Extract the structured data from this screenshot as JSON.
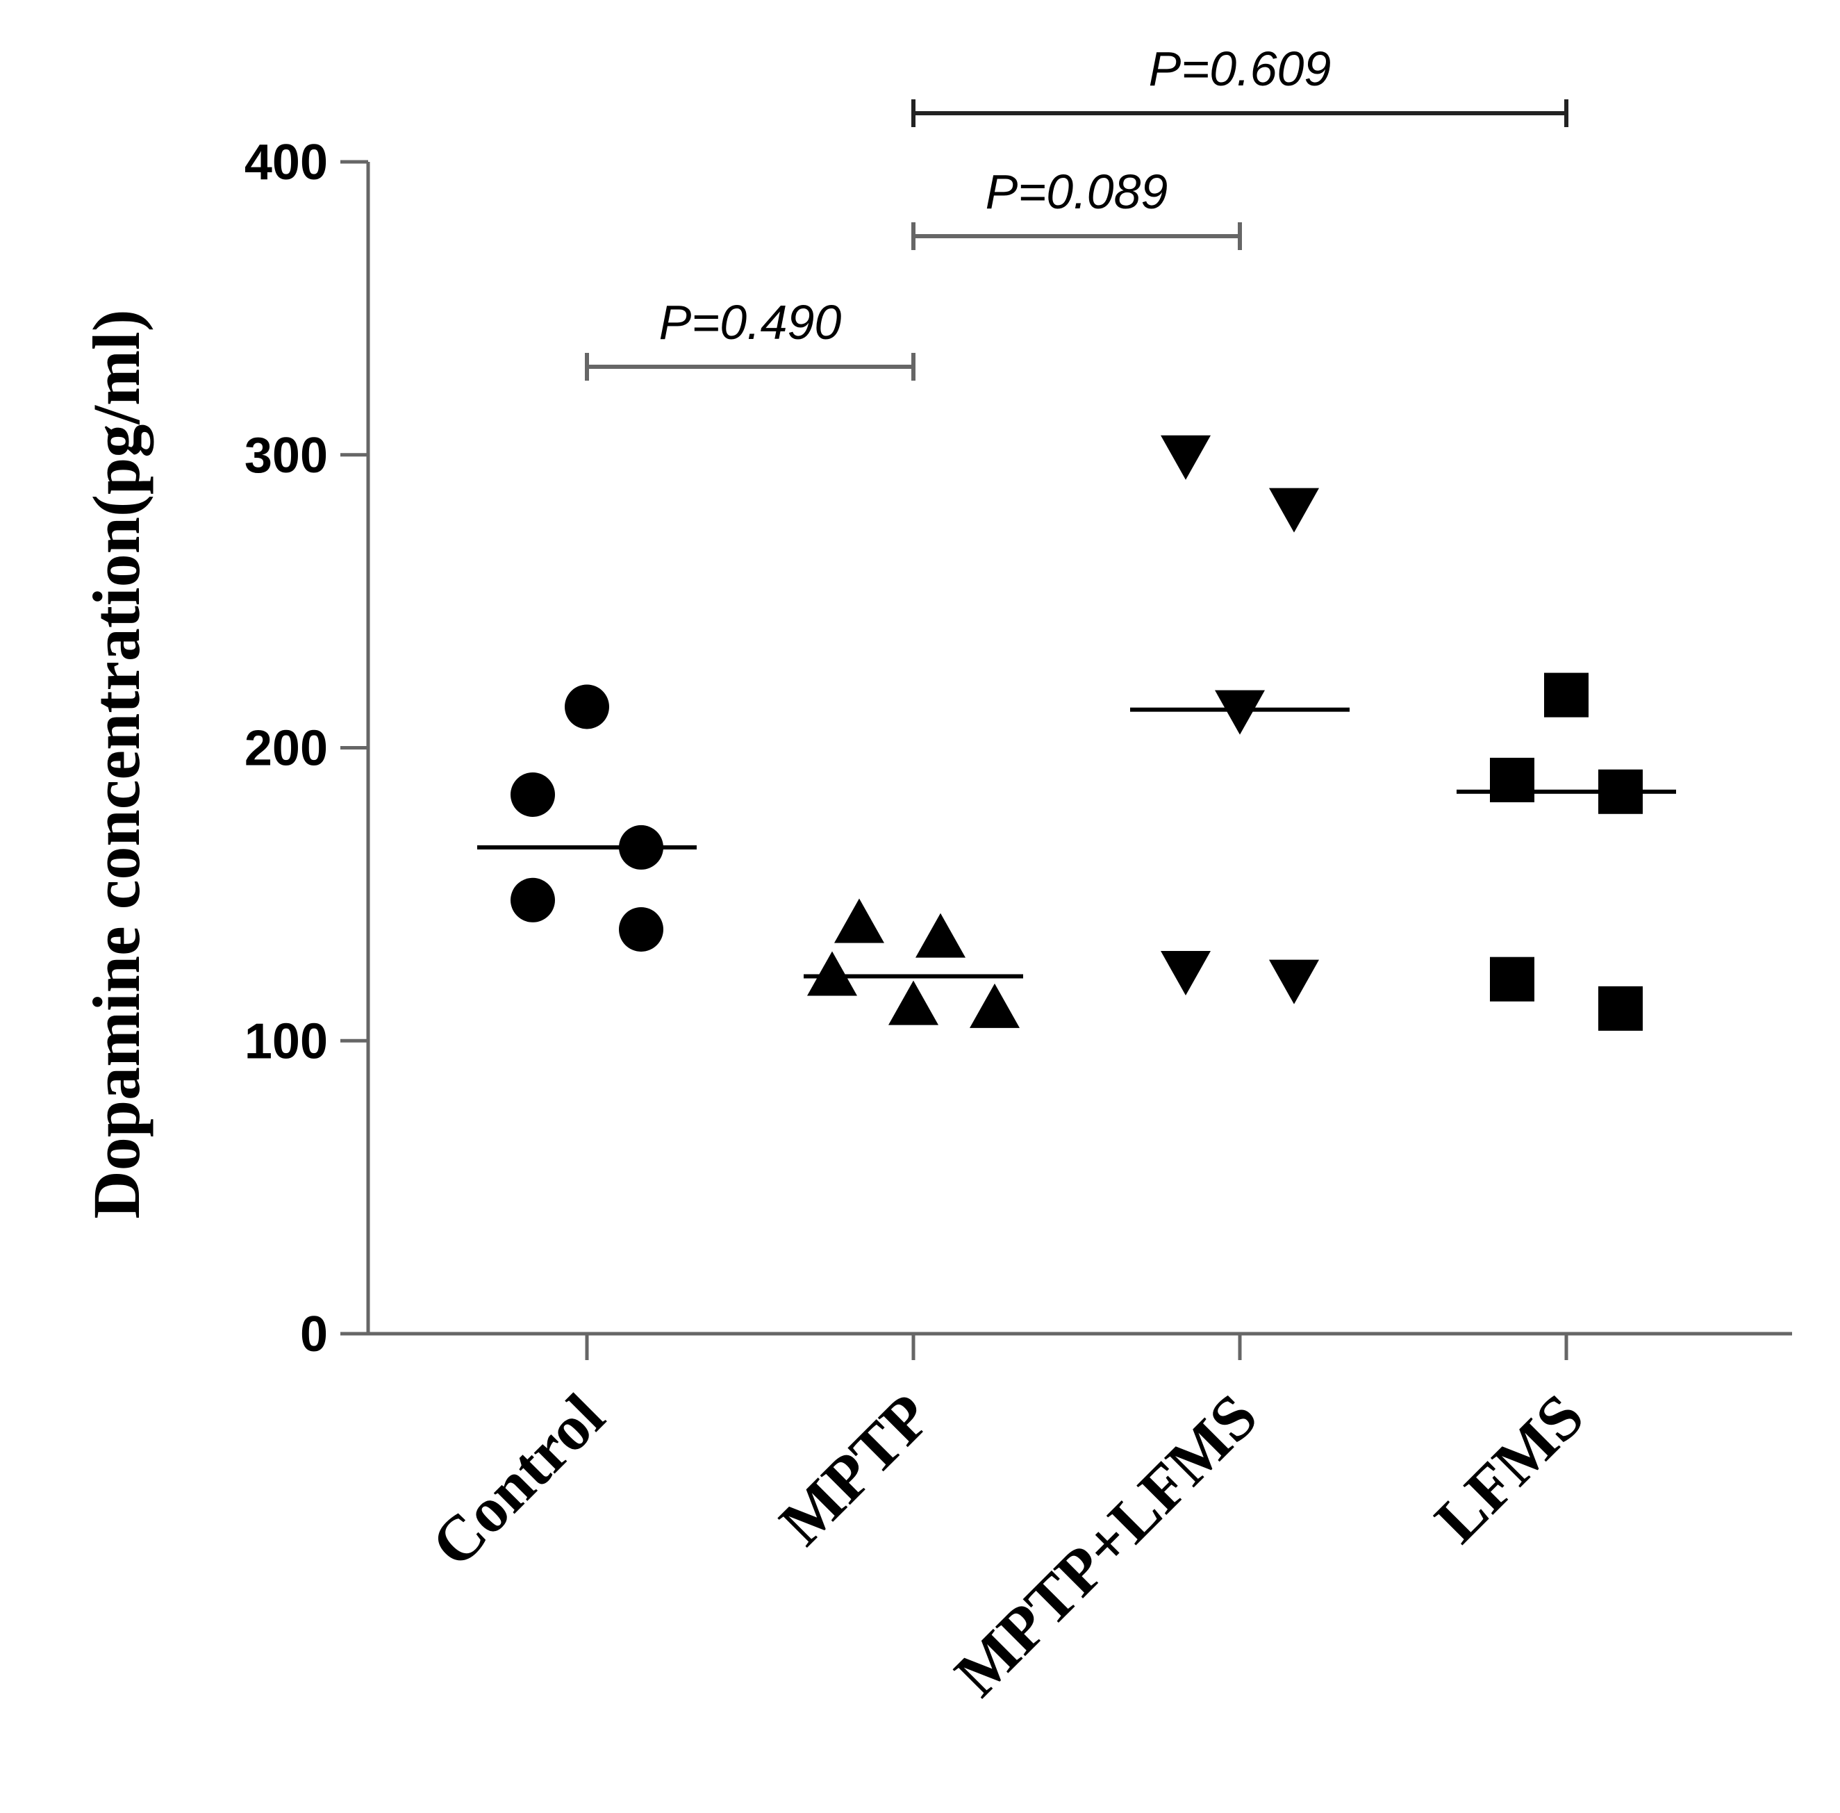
{
  "chart_data": {
    "type": "scatter",
    "ylabel": "Dopamine concentration(pg/ml)",
    "xlabel": "",
    "ylim": [
      0,
      400
    ],
    "yticks": [
      0,
      100,
      200,
      300,
      400
    ],
    "categories": [
      "Control",
      "MPTP",
      "MPTP+LFMS",
      "LFMS"
    ],
    "groups": [
      {
        "category": "Control",
        "marker": "circle",
        "median": 166,
        "points": [
          {
            "offset": 0,
            "y": 214
          },
          {
            "offset": -1,
            "y": 184
          },
          {
            "offset": 1,
            "y": 166
          },
          {
            "offset": -1,
            "y": 148
          },
          {
            "offset": 1,
            "y": 138
          }
        ]
      },
      {
        "category": "MPTP",
        "marker": "triangle-up",
        "median": 122,
        "points": [
          {
            "offset": -1,
            "y": 140
          },
          {
            "offset": 0.5,
            "y": 135
          },
          {
            "offset": -1.5,
            "y": 122
          },
          {
            "offset": 0,
            "y": 112
          },
          {
            "offset": 1.5,
            "y": 111
          }
        ]
      },
      {
        "category": "MPTP+LFMS",
        "marker": "triangle-down",
        "median": 213,
        "points": [
          {
            "offset": -1,
            "y": 300
          },
          {
            "offset": 1,
            "y": 282
          },
          {
            "offset": 0,
            "y": 213
          },
          {
            "offset": -1,
            "y": 124
          },
          {
            "offset": 1,
            "y": 121
          }
        ]
      },
      {
        "category": "LFMS",
        "marker": "square",
        "median": 185,
        "points": [
          {
            "offset": 0,
            "y": 218
          },
          {
            "offset": -1,
            "y": 189
          },
          {
            "offset": 1,
            "y": 185
          },
          {
            "offset": -1,
            "y": 121
          },
          {
            "offset": 1,
            "y": 111
          }
        ]
      }
    ],
    "comparisons": [
      {
        "from": "Control",
        "to": "MPTP",
        "label": "P=0.490",
        "color": "#666666"
      },
      {
        "from": "MPTP",
        "to": "MPTP+LFMS",
        "label": "P=0.089",
        "color": "#666666"
      },
      {
        "from": "MPTP",
        "to": "LFMS",
        "label": "P=0.609",
        "color": "#222222"
      }
    ],
    "colors": {
      "markers": "#000000",
      "axis": "#666666"
    }
  }
}
